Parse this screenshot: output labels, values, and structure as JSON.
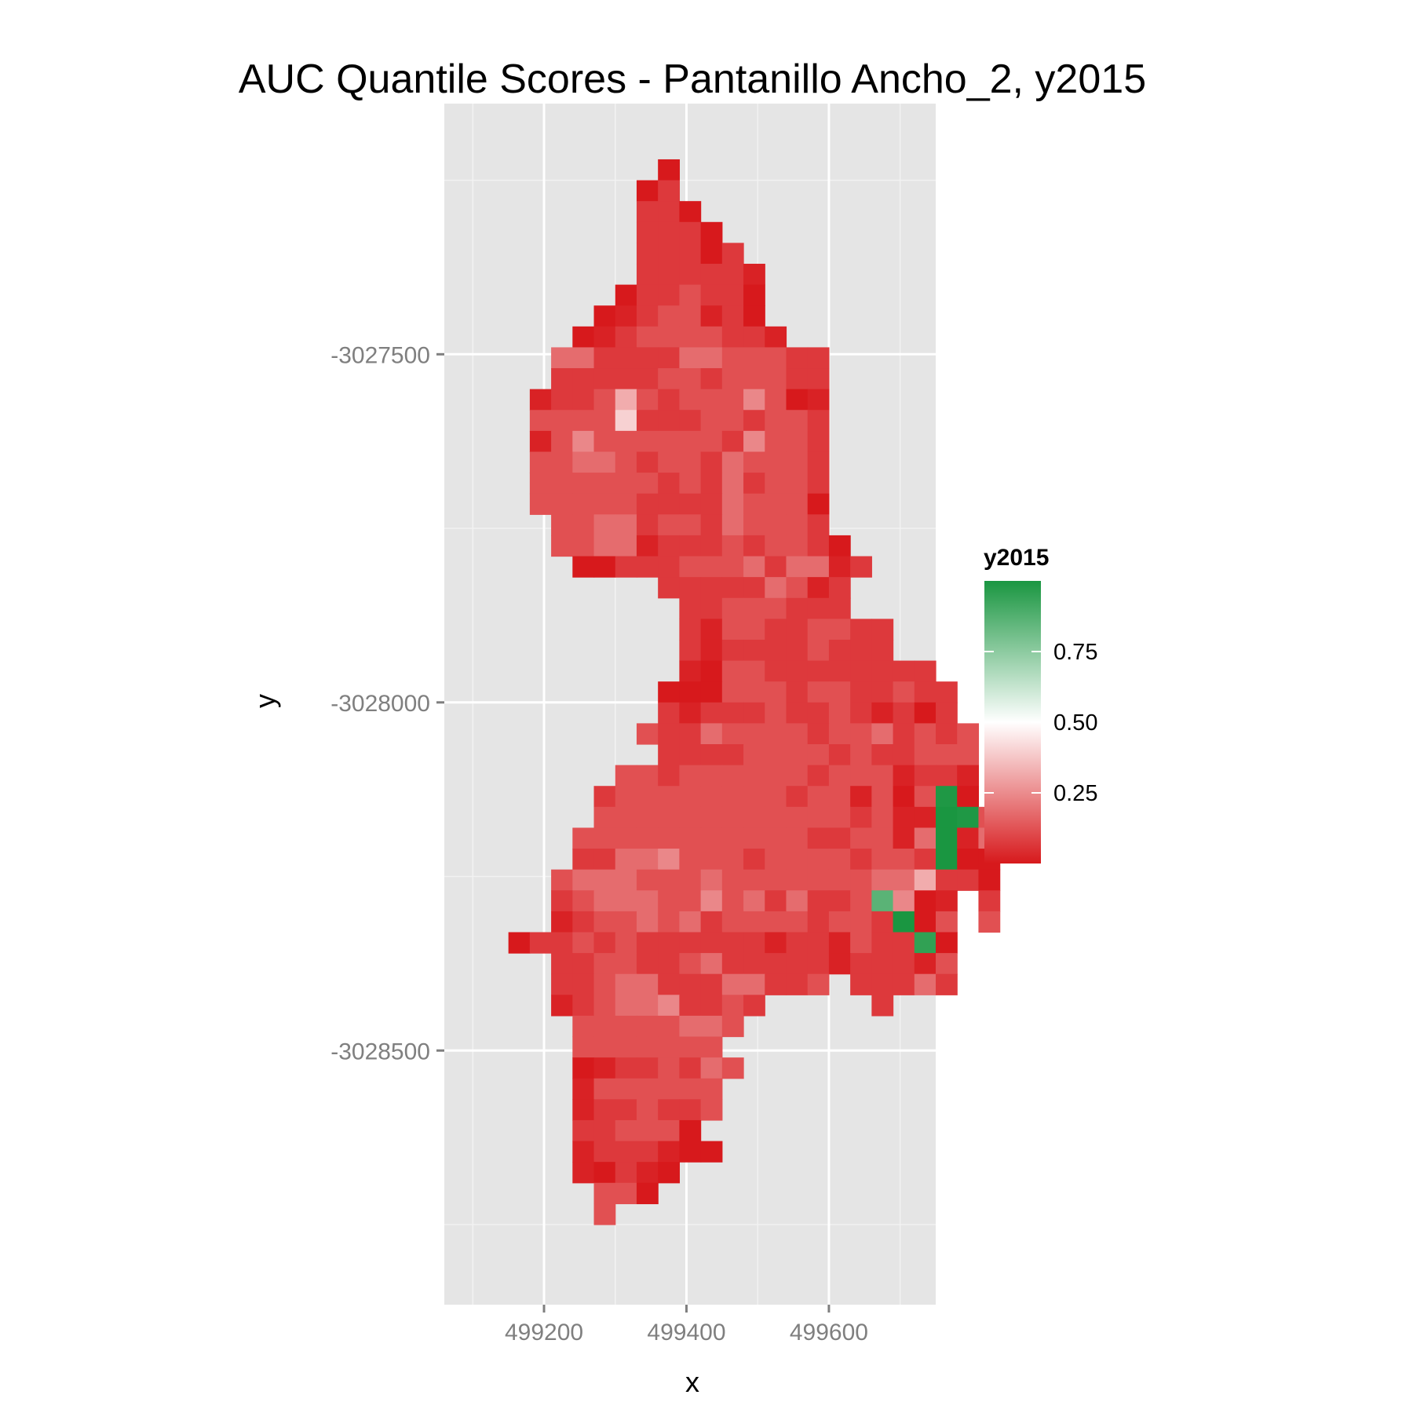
{
  "chart_data": {
    "type": "heatmap",
    "title": "AUC Quantile Scores - Pantanillo Ancho_2, y2015",
    "xlabel": "x",
    "ylabel": "y",
    "x_ticks": [
      499200,
      499400,
      499600
    ],
    "x_tick_labels": [
      "499200",
      "499400",
      "499600"
    ],
    "y_ticks": [
      -3027500,
      -3028000,
      -3028500
    ],
    "y_tick_labels": [
      "-3027500",
      "-3028000",
      "-3028500"
    ],
    "xlim": [
      499060,
      499750
    ],
    "ylim": [
      -3028865,
      -3027140
    ],
    "grid": true,
    "cell_size": 30,
    "x0": 499105,
    "y0": -3027235,
    "legend": {
      "title": "y2015",
      "position": "right",
      "ticks": [
        0.25,
        0.5,
        0.75
      ],
      "tick_labels": [
        "0.25",
        "0.50",
        "0.75"
      ],
      "range": [
        0,
        1
      ],
      "colors": {
        "low": "#d7191c",
        "mid": "#ffffff",
        "high": "#1a9641"
      }
    },
    "rows": [
      ".........0",
      "........02",
      "........220",
      "........2220",
      "........22202",
      "........222221",
      ".......0223220",
      "......01233120",
      ".....0123333221",
      "....4422224433322",
      "....2222233233322",
      "...12237323335301",
      "...33339222332332",
      "...13533333325332",
      "...33443233243332",
      "...33333323242332",
      "...33333222243330",
      "....3344233243332",
      "....33441222323320",
      ".....00222333424412",
      ".........222224312",
      "..........22333222",
      "..........2133223322",
      "..........2122223222",
      "..........103322222222",
      ".........00033323322322",
      ".........21222322321202",
      "........3224333323342323",
      ".........222233332322333",
      ".......33233333323331221",
      "......2333333332331303X0",
      "......3333333333332311ZX3",
      ".....33333333333223314Z14",
      ".....22445333233332332Z00",
      "....344433343333333447220",
      "....234443353424223Y501.2",
      "....1233434233332332Z03.3",
      "..0223232222221221322W0",
      "....2233223422222122213...",
      "....2234422244223.22242",
      "....1234452232.....2",
      ".....33333443",
      ".....3333333",
      ".....01223243",
      ".....1333333",
      ".....1223223",
      ".....223330",
      ".....1222100",
      ".....10210",
      "......330",
      "......3"
    ],
    "palette": {
      "0": 0.0,
      "1": 0.02,
      "2": 0.07,
      "3": 0.12,
      "4": 0.18,
      "5": 0.24,
      "7": 0.32,
      "9": 0.4,
      "W": 0.95,
      "X": 0.99,
      "Y": 0.86,
      "Z": 1.0
    }
  }
}
